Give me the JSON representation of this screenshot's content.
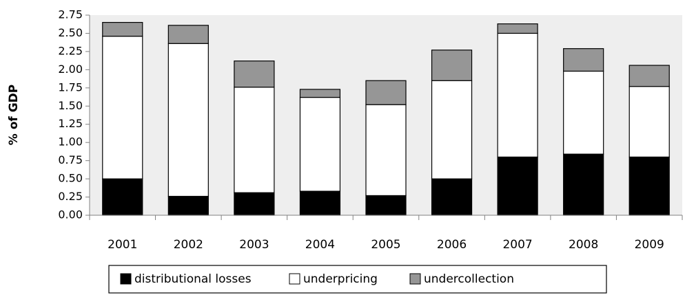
{
  "chart_data": {
    "type": "stacked_bar",
    "y_label": "% of GDP",
    "categories": [
      "2001",
      "2002",
      "2003",
      "2004",
      "2005",
      "2006",
      "2007",
      "2008",
      "2009"
    ],
    "series": [
      {
        "name": "distributional losses",
        "color": "#000000",
        "values": [
          0.5,
          0.26,
          0.31,
          0.33,
          0.27,
          0.5,
          0.8,
          0.84,
          0.8
        ]
      },
      {
        "name": "underpricing",
        "color": "#ffffff",
        "values": [
          1.96,
          2.1,
          1.45,
          1.29,
          1.25,
          1.35,
          1.7,
          1.14,
          0.97
        ]
      },
      {
        "name": "undercollection",
        "color": "#969696",
        "values": [
          0.19,
          0.25,
          0.36,
          0.11,
          0.33,
          0.42,
          0.13,
          0.31,
          0.29
        ]
      }
    ],
    "ylim": [
      0,
      2.75
    ],
    "yticks": [
      {
        "value": 0,
        "label": "0.00"
      },
      {
        "value": 0.25,
        "label": "0.25"
      },
      {
        "value": 0.5,
        "label": "0.50"
      },
      {
        "value": 0.75,
        "label": "0.75"
      },
      {
        "value": 1,
        "label": "1.00"
      },
      {
        "value": 1.25,
        "label": "1.25"
      },
      {
        "value": 1.5,
        "label": "1.50"
      },
      {
        "value": 1.75,
        "label": "1.75"
      },
      {
        "value": 2,
        "label": "2.00"
      },
      {
        "value": 2.25,
        "label": "2.25"
      },
      {
        "value": 2.5,
        "label": "2.50"
      },
      {
        "value": 2.75,
        "label": "2.75"
      }
    ],
    "legend": "bottom"
  }
}
